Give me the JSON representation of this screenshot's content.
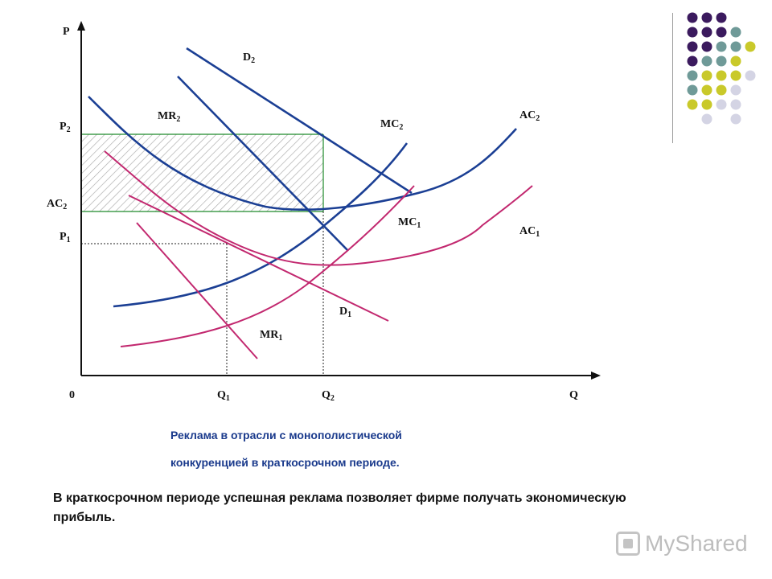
{
  "diagram": {
    "axis": {
      "y_label": "P",
      "x_label": "Q",
      "origin_label": "0"
    },
    "price_ticks": [
      {
        "id": "p2",
        "base": "P",
        "sub": "2"
      },
      {
        "id": "ac2tick",
        "base": "AC",
        "sub": "2"
      },
      {
        "id": "p1",
        "base": "P",
        "sub": "1"
      }
    ],
    "quantity_ticks": [
      {
        "id": "q1",
        "base": "Q",
        "sub": "1"
      },
      {
        "id": "q2",
        "base": "Q",
        "sub": "2"
      }
    ],
    "curves": [
      {
        "id": "d2",
        "base": "D",
        "sub": "2",
        "color": "#1b3f94"
      },
      {
        "id": "mr2",
        "base": "MR",
        "sub": "2",
        "color": "#1b3f94"
      },
      {
        "id": "mc2",
        "base": "MC",
        "sub": "2",
        "color": "#1b3f94"
      },
      {
        "id": "ac2",
        "base": "AC",
        "sub": "2",
        "color": "#1b3f94"
      },
      {
        "id": "mc1",
        "base": "MC",
        "sub": "1",
        "color": "#c2286f"
      },
      {
        "id": "ac1",
        "base": "AC",
        "sub": "1",
        "color": "#c2286f"
      },
      {
        "id": "d1",
        "base": "D",
        "sub": "1",
        "color": "#c2286f"
      },
      {
        "id": "mr1",
        "base": "MR",
        "sub": "1",
        "color": "#c2286f"
      }
    ],
    "profit_area_color": "#1f8a2a"
  },
  "caption": {
    "line1": "Реклама в отрасли с монополистической",
    "line2": "конкуренцией в краткосрочном периоде."
  },
  "footer_text": "В краткосрочном периоде успешная реклама позволяет фирме получать экономическую прибыль.",
  "watermark": "MyShared",
  "palette": [
    "#3b1a5e",
    "#6f9a98",
    "#c9c92a",
    "#d4d4e4"
  ]
}
